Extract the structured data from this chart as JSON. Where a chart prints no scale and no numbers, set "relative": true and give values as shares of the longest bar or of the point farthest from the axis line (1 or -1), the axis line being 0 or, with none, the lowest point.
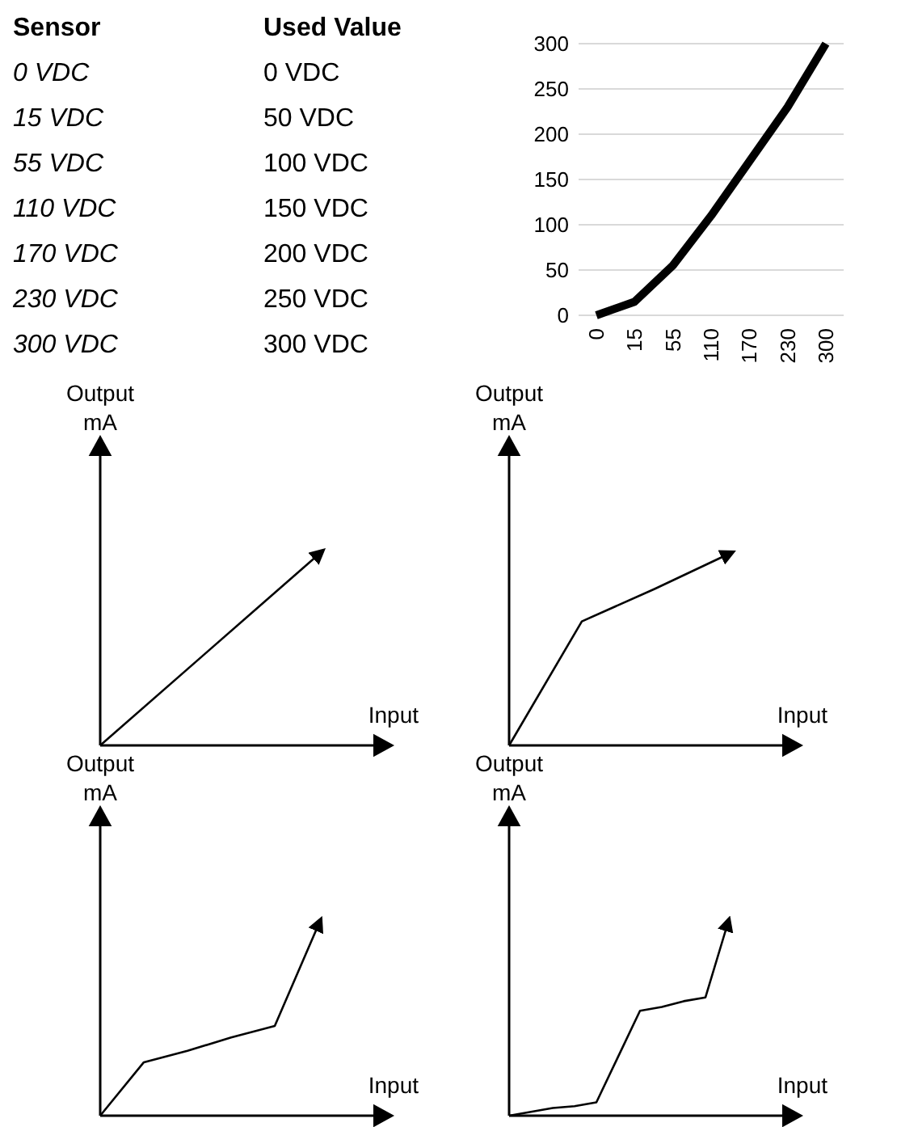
{
  "chart_data": [
    {
      "type": "line",
      "categories": [
        "0",
        "15",
        "55",
        "110",
        "170",
        "230",
        "300"
      ],
      "values": [
        0,
        15,
        55,
        110,
        170,
        230,
        300
      ],
      "color": "#000000",
      "ylim": [
        0,
        300
      ],
      "yticks": [
        0,
        50,
        100,
        150,
        200,
        250,
        300
      ],
      "grid": "y",
      "marker": "none",
      "annotations": [
        "Sensor",
        "Used Value",
        "0 VDC",
        "0 VDC",
        "15 VDC",
        "50 VDC",
        "55 VDC",
        "100 VDC",
        "110 VDC",
        "150 VDC",
        "170 VDC",
        "200 VDC",
        "230 VDC",
        "250 VDC",
        "300 VDC",
        "300 VDC"
      ]
    },
    {
      "type": "line",
      "relative": true,
      "xlabel": "Input",
      "ylabel": "Output\nmA",
      "categories": [
        null,
        null
      ],
      "values": [
        0,
        1
      ],
      "color": "#000000",
      "tick_labels": false
    },
    {
      "type": "line",
      "relative": true,
      "xlabel": "Input",
      "ylabel": "Output\nmA",
      "categories": [
        null,
        null,
        null,
        null
      ],
      "values": [
        0,
        0.65,
        0.82,
        1
      ],
      "color": "#000000",
      "tick_labels": false
    },
    {
      "type": "line",
      "relative": true,
      "xlabel": "Input",
      "ylabel": "Output\nmA",
      "categories": [
        null,
        null,
        null,
        null,
        null,
        null
      ],
      "values": [
        0,
        0.28,
        0.34,
        0.41,
        0.47,
        1
      ],
      "color": "#000000",
      "tick_labels": false
    },
    {
      "type": "line",
      "relative": true,
      "xlabel": "Input",
      "ylabel": "Output\nmA",
      "categories": [
        null,
        null,
        null,
        null,
        null,
        null,
        null,
        null,
        null,
        null,
        null
      ],
      "values": [
        0,
        0.02,
        0.04,
        0.05,
        0.07,
        0.31,
        0.55,
        0.57,
        0.6,
        0.62,
        1
      ],
      "color": "#000000",
      "tick_labels": false
    }
  ]
}
